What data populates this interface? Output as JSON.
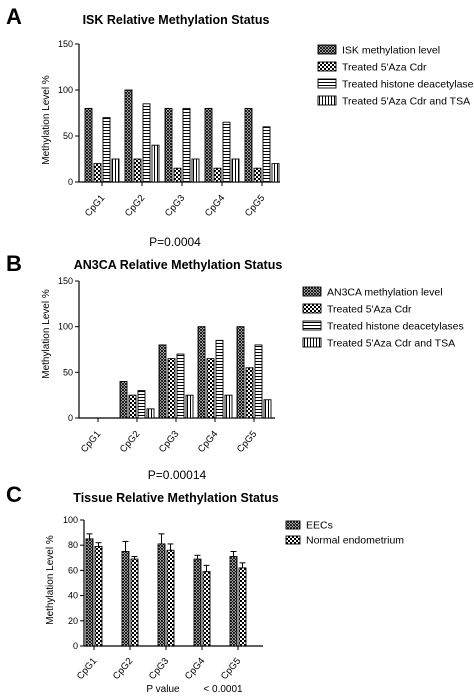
{
  "chart_data": [
    {
      "type": "bar",
      "panel": "A",
      "title": "ISK Relative Methylation Status",
      "ylabel": "Methylation Level %",
      "ylim": [
        0,
        150
      ],
      "yticks": [
        0,
        50,
        100,
        150
      ],
      "categories": [
        "CpG1",
        "CpG2",
        "CpG3",
        "CpG4",
        "CpG5"
      ],
      "series": [
        {
          "name": "ISK methylation level",
          "pattern": "cross-dense",
          "values": [
            80,
            100,
            80,
            80,
            80
          ]
        },
        {
          "name": "Treated 5'Aza Cdr",
          "pattern": "checker",
          "values": [
            20,
            25,
            15,
            15,
            15
          ]
        },
        {
          "name": "Treated histone deacetylases",
          "pattern": "hlines",
          "values": [
            70,
            85,
            80,
            65,
            60
          ]
        },
        {
          "name": "Treated 5'Aza Cdr and TSA",
          "pattern": "vlines",
          "values": [
            25,
            40,
            25,
            25,
            20
          ]
        }
      ],
      "footnote": "P=0.0004"
    },
    {
      "type": "bar",
      "panel": "B",
      "title": "AN3CA Relative Methylation Status",
      "ylabel": "Methylation Level %",
      "ylim": [
        0,
        150
      ],
      "yticks": [
        0,
        50,
        100,
        150
      ],
      "categories": [
        "CpG1",
        "CpG2",
        "CpG3",
        "CpG4",
        "CpG5"
      ],
      "series": [
        {
          "name": "AN3CA methylation level",
          "pattern": "cross-dense",
          "values": [
            0,
            40,
            80,
            100,
            100
          ]
        },
        {
          "name": "Treated 5'Aza Cdr",
          "pattern": "checker",
          "values": [
            0,
            25,
            65,
            65,
            55
          ]
        },
        {
          "name": "Treated histone deacetylases",
          "pattern": "hlines",
          "values": [
            0,
            30,
            70,
            85,
            80
          ]
        },
        {
          "name": "Treated 5'Aza Cdr and TSA",
          "pattern": "vlines",
          "values": [
            0,
            10,
            25,
            25,
            20
          ]
        }
      ],
      "footnote": "P=0.00014"
    },
    {
      "type": "bar",
      "panel": "C",
      "title": "Tissue Relative Methylation Status",
      "ylabel": "Methylation Level %",
      "ylim": [
        0,
        100
      ],
      "yticks": [
        0,
        20,
        40,
        60,
        80,
        100
      ],
      "categories": [
        "CpG1",
        "CpG2",
        "CpG3",
        "CpG4",
        "CpG5"
      ],
      "series": [
        {
          "name": "EECs",
          "pattern": "cross-dense",
          "values": [
            85,
            75,
            81,
            69,
            71
          ],
          "errors": [
            4,
            8,
            8,
            3,
            4
          ]
        },
        {
          "name": "Normal endometrium",
          "pattern": "checker",
          "values": [
            79,
            69,
            76,
            59,
            62
          ],
          "errors": [
            3,
            2,
            5,
            5,
            4
          ]
        }
      ],
      "footnote_label": "P value",
      "footnote_value": "< 0.0001"
    }
  ]
}
